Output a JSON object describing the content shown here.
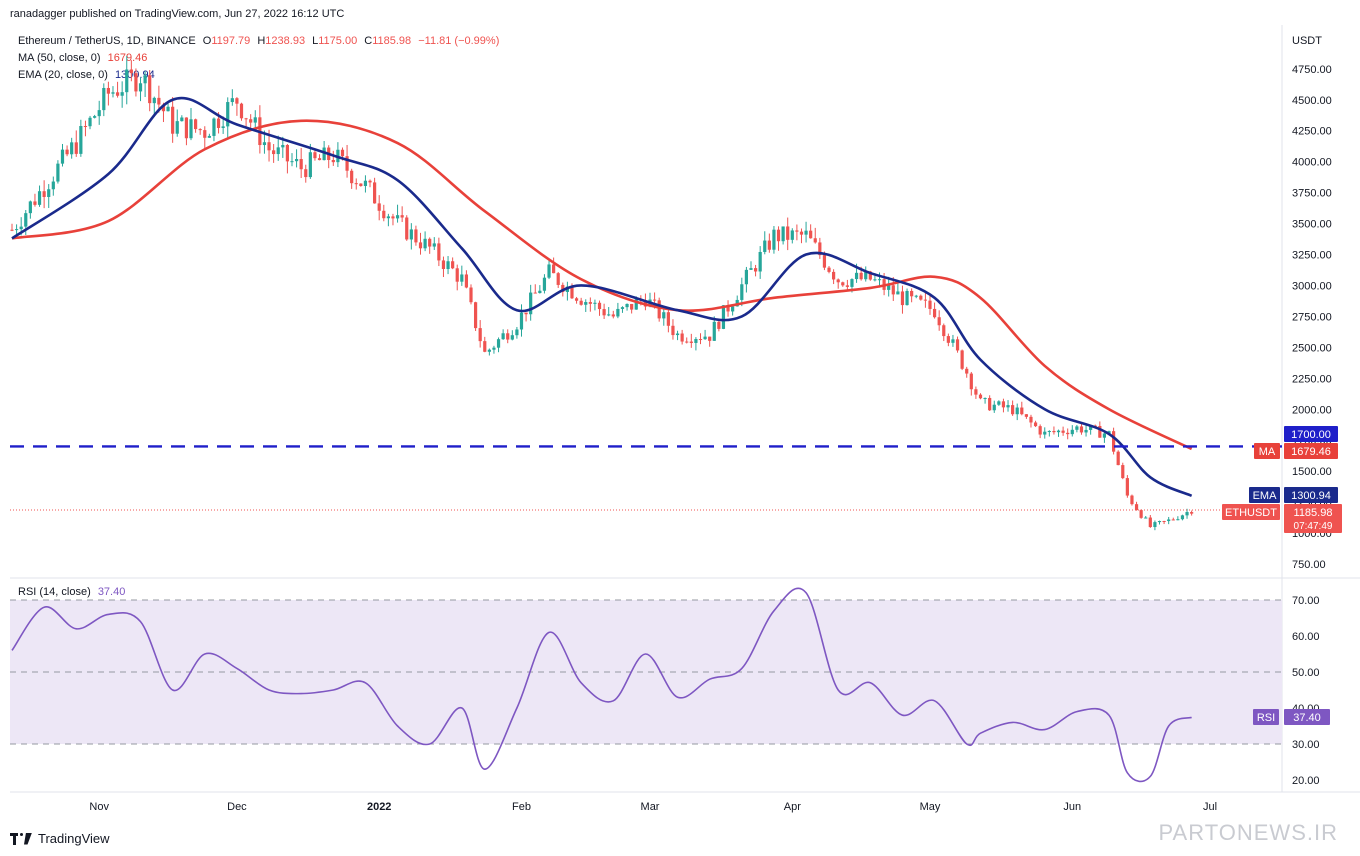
{
  "header": {
    "published": "ranadagger published on TradingView.com, Jun 27, 2022 16:12 UTC"
  },
  "legend": {
    "symbol": "Ethereum / TetherUS, 1D, BINANCE",
    "o_label": "O",
    "o": "1197.79",
    "h_label": "H",
    "h": "1238.93",
    "l_label": "L",
    "l": "1175.00",
    "c_label": "C",
    "c": "1185.98",
    "change": "−11.81 (−0.99%)",
    "ma_label": "MA (50, close, 0)",
    "ma_value": "1679.46",
    "ema_label": "EMA (20, close, 0)",
    "ema_value": "1300.94",
    "rsi_label": "RSI (14, close)",
    "rsi_value": "37.40"
  },
  "axis": {
    "currency": "USDT",
    "price_ticks": [
      "750.00",
      "1000.00",
      "1250.00",
      "1500.00",
      "1750.00",
      "2000.00",
      "2250.00",
      "2500.00",
      "2750.00",
      "3000.00",
      "3250.00",
      "3500.00",
      "3750.00",
      "4000.00",
      "4250.00",
      "4500.00",
      "4750.00"
    ],
    "rsi_ticks": [
      "20.00",
      "30.00",
      "40.00",
      "50.00",
      "60.00",
      "70.00"
    ],
    "time_ticks": [
      "Nov",
      "Dec",
      "2022",
      "Feb",
      "Mar",
      "Apr",
      "May",
      "Jun",
      "Jul"
    ]
  },
  "price_labels": {
    "level": "1700.00",
    "ma_tag": "MA",
    "ma": "1679.46",
    "ema_tag": "EMA",
    "ema": "1300.94",
    "sym_tag": "ETHUSDT",
    "last": "1185.98",
    "countdown": "07:47:49",
    "rsi_tag": "RSI",
    "rsi": "37.40"
  },
  "colors": {
    "up": "#26a69a",
    "down": "#ef5350",
    "ma": "#e8413a",
    "ema": "#1a2a8c",
    "level": "#1f1fc9",
    "rsi": "#7e57c2",
    "rsi_band": "#ede7f6"
  },
  "footer": {
    "brand": "TradingView",
    "watermark": "PARTONEWS.IR"
  },
  "chart_data": {
    "type": "line",
    "title": "Ethereum / TetherUS, 1D, BINANCE",
    "ylabel": "USDT",
    "ylim": [
      650,
      4900
    ],
    "horizontal_level": 1700,
    "series": [
      {
        "name": "ETHUSDT",
        "dates": [
          "Oct 13",
          "Oct 20",
          "Oct 27",
          "Nov 3",
          "Nov 10",
          "Nov 17",
          "Nov 24",
          "Dec 1",
          "Dec 8",
          "Dec 15",
          "Dec 22",
          "Dec 29",
          "Jan 5",
          "Jan 12",
          "Jan 19",
          "Jan 24",
          "Jan 31",
          "Feb 7",
          "Feb 14",
          "Feb 21",
          "Feb 28",
          "Mar 7",
          "Mar 14",
          "Mar 21",
          "Mar 28",
          "Apr 4",
          "Apr 11",
          "Apr 18",
          "Apr 25",
          "May 2",
          "May 9",
          "May 12",
          "May 19",
          "May 26",
          "Jun 2",
          "Jun 9",
          "Jun 13",
          "Jun 18",
          "Jun 22",
          "Jun 27"
        ],
        "values": [
          3450,
          3800,
          4150,
          4550,
          4700,
          4300,
          4250,
          4500,
          4100,
          3950,
          4050,
          3800,
          3500,
          3300,
          3050,
          2450,
          2700,
          3100,
          2900,
          2750,
          2900,
          2600,
          2600,
          3000,
          3400,
          3400,
          3050,
          3050,
          2900,
          2800,
          2300,
          2050,
          2000,
          1800,
          1850,
          1800,
          1300,
          1050,
          1100,
          1186
        ]
      },
      {
        "name": "MA (50, close, 0)",
        "dates": [
          "Oct 13",
          "Nov 3",
          "Nov 24",
          "Dec 15",
          "Jan 5",
          "Jan 24",
          "Feb 14",
          "Mar 7",
          "Mar 28",
          "Apr 18",
          "May 2",
          "May 12",
          "May 26",
          "Jun 9",
          "Jun 27"
        ],
        "values": [
          3380,
          3520,
          4100,
          4330,
          4150,
          3600,
          3050,
          2800,
          2900,
          2980,
          3070,
          2900,
          2350,
          2000,
          1679.46
        ]
      },
      {
        "name": "EMA (20, close, 0)",
        "dates": [
          "Oct 13",
          "Nov 3",
          "Nov 17",
          "Dec 1",
          "Dec 22",
          "Jan 5",
          "Jan 19",
          "Jan 31",
          "Feb 14",
          "Mar 7",
          "Mar 21",
          "Apr 4",
          "Apr 18",
          "May 2",
          "May 12",
          "May 26",
          "Jun 9",
          "Jun 18",
          "Jun 27"
        ],
        "values": [
          3380,
          3900,
          4500,
          4300,
          4050,
          3850,
          3300,
          2800,
          3000,
          2800,
          2750,
          3250,
          3100,
          2900,
          2400,
          2000,
          1800,
          1450,
          1300.94
        ]
      },
      {
        "name": "RSI (14, close)",
        "dates": [
          "Oct 13",
          "Oct 20",
          "Oct 27",
          "Nov 3",
          "Nov 10",
          "Nov 17",
          "Nov 24",
          "Dec 1",
          "Dec 8",
          "Dec 15",
          "Dec 22",
          "Dec 29",
          "Jan 5",
          "Jan 12",
          "Jan 19",
          "Jan 24",
          "Jan 31",
          "Feb 7",
          "Feb 14",
          "Feb 21",
          "Feb 28",
          "Mar 7",
          "Mar 14",
          "Mar 21",
          "Mar 28",
          "Apr 4",
          "Apr 11",
          "Apr 18",
          "Apr 25",
          "May 2",
          "May 9",
          "May 12",
          "May 19",
          "May 26",
          "Jun 2",
          "Jun 9",
          "Jun 13",
          "Jun 18",
          "Jun 22",
          "Jun 27"
        ],
        "values": [
          56,
          68,
          62,
          66,
          64,
          45,
          55,
          51,
          45,
          44,
          45,
          47,
          35,
          30,
          40,
          23,
          40,
          61,
          47,
          42,
          55,
          43,
          48,
          51,
          67,
          72,
          45,
          47,
          38,
          42,
          30,
          33,
          36,
          34,
          39,
          38,
          22,
          21,
          35,
          37.4
        ],
        "ylim": [
          15,
          75
        ]
      }
    ]
  }
}
